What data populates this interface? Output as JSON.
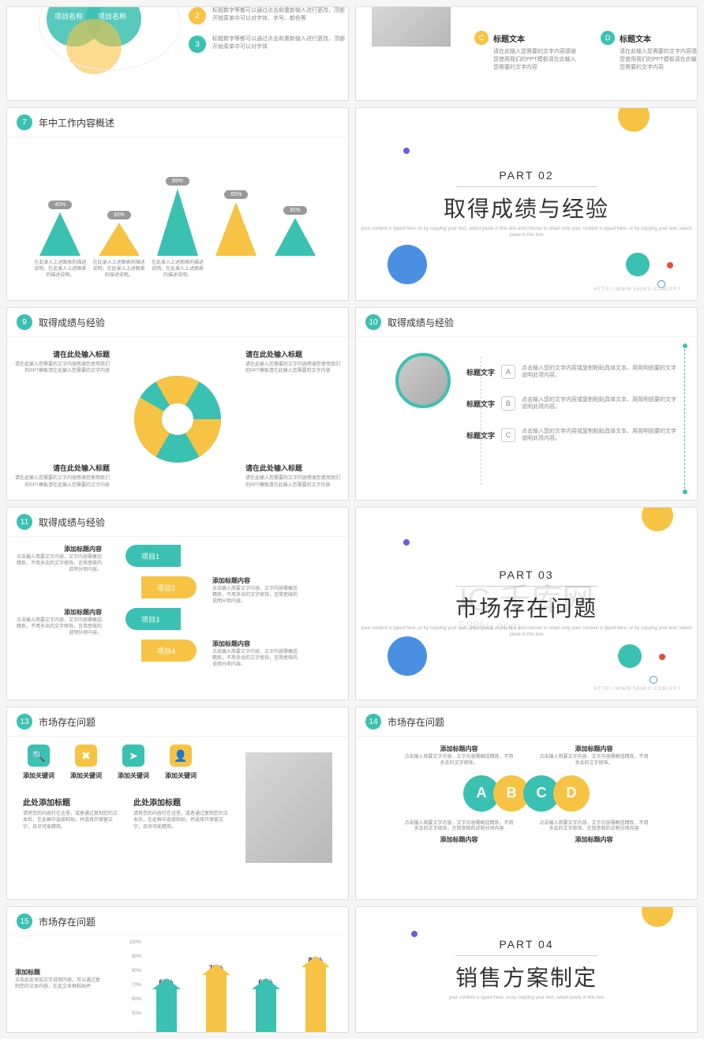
{
  "colors": {
    "teal": "#3ac1b2",
    "yellow": "#f7c344",
    "blue": "#4a90e2",
    "red": "#e74c3c",
    "purple": "#6b5bde"
  },
  "watermark": {
    "logo": "IC",
    "text": "千库网",
    "url": "588ku.com"
  },
  "slide1": {
    "venn": {
      "label1": "项目名称",
      "label2": "项目名称"
    },
    "items": [
      {
        "n": "2",
        "color": "#f7c344",
        "text": "标题数字等都可以通过点击和重新输入进行更改，顶部开始菜单中可以对字体、字号、颜色等"
      },
      {
        "n": "3",
        "color": "#3ac1b2",
        "text": "标题数字等都可以通过点击和重新输入进行更改，顶部开始菜单中可以对字体"
      }
    ]
  },
  "slide2": {
    "items": [
      {
        "letter": "C",
        "color": "#f7c344",
        "title": "标题文本",
        "text": "请在此输入您需要的文字内容感谢您使用我们的PPT模板请在此输入您需要的文字内容"
      },
      {
        "letter": "D",
        "color": "#3ac1b2",
        "title": "标题文本",
        "text": "请在此输入您需要的文字内容感谢您使用我们的PPT模板请在此输入您需要的文字内容"
      }
    ],
    "top": [
      {
        "text": "请在此输入您需要的文字内容"
      },
      {
        "text": "请在此输入您需要的文字内容"
      }
    ]
  },
  "slide7": {
    "num": "7",
    "title": "年中工作内容概述",
    "peaks": [
      {
        "pct": "40%",
        "h": 55,
        "color": "#3ac1b2",
        "desc": "在此录入上述图表的描述说明，在此录入上述图表的描述说明。"
      },
      {
        "pct": "30%",
        "h": 42,
        "color": "#f7c344",
        "desc": "在此录入上述图表的描述说明，在此录入上述图表的描述说明。"
      },
      {
        "pct": "89%",
        "h": 85,
        "color": "#3ac1b2",
        "desc": "在此录入上述图表的描述说明，在此录入上述图表的描述说明。"
      },
      {
        "pct": "65%",
        "h": 68,
        "color": "#f7c344",
        "desc": ""
      },
      {
        "pct": "35%",
        "h": 48,
        "color": "#3ac1b2",
        "desc": ""
      }
    ]
  },
  "part2": {
    "num": "PART 02",
    "title": "取得成绩与经验",
    "sub": "your content is typed here, or by copying your text, select paste in this box and choose to retain only your content is typed here, or by copying your text, select paste in this box",
    "url": "HTTP://WWW.588KU.COM/PPT"
  },
  "slide9": {
    "num": "9",
    "title": "取得成绩与经验",
    "quads": [
      {
        "pos": "tl",
        "title": "请在此处输入标题",
        "text": "请在此输入您需要的文字内容感谢您使用我们的PPT模板请在此输入您需要的文字内容"
      },
      {
        "pos": "tr",
        "title": "请在此处输入标题",
        "text": "请在此输入您需要的文字内容感谢您使用我们的PPT模板请在此输入您需要的文字内容"
      },
      {
        "pos": "bl",
        "title": "请在此处输入标题",
        "text": "请在此输入您需要的文字内容感谢您使用我们的PPT模板请在此输入您需要的文字内容"
      },
      {
        "pos": "br",
        "title": "请在此处输入标题",
        "text": "请在此输入您需要的文字内容感谢您使用我们的PPT模板请在此输入您需要的文字内容"
      }
    ],
    "segColors": [
      "#3ac1b2",
      "#f7c344",
      "#3ac1b2",
      "#f7c344",
      "#3ac1b2",
      "#f7c344"
    ]
  },
  "slide10": {
    "num": "10",
    "title": "取得成绩与经验",
    "rows": [
      {
        "label": "标题文字",
        "letter": "A",
        "text": "点击输入您的文字内容或复制粘贴具体文本、用简明扼要的文字说明此项内容。"
      },
      {
        "label": "标题文字",
        "letter": "B",
        "text": "点击输入您的文字内容或复制粘贴具体文本、用简明扼要的文字说明此项内容。"
      },
      {
        "label": "标题文字",
        "letter": "C",
        "text": "点击输入您的文字内容或复制粘贴具体文本、用简明扼要的文字说明此项内容。"
      }
    ]
  },
  "slide11": {
    "num": "11",
    "title": "取得成绩与经验",
    "projects": [
      {
        "label": "项目1",
        "color": "#3ac1b2"
      },
      {
        "label": "项目2",
        "color": "#f7c344"
      },
      {
        "label": "项目3",
        "color": "#3ac1b2"
      },
      {
        "label": "项目4",
        "color": "#f7c344"
      }
    ],
    "texts": [
      {
        "title": "添加标题内容",
        "text": "点击输入简要文字内容，文字内容需概括精炼，不用多余的文字修饰，言简意赅的说明分项内容。"
      },
      {
        "title": "添加标题内容",
        "text": "点击输入简要文字内容，文字内容需概括精炼，不用多余的文字修饰，言简意赅的说明分项内容。"
      },
      {
        "title": "添加标题内容",
        "text": "点击输入简要文字内容，文字内容需概括精炼，不用多余的文字修饰，言简意赅的说明分项内容。"
      },
      {
        "title": "添加标题内容",
        "text": "点击输入简要文字内容，文字内容需概括精炼，不用多余的文字修饰，言简意赅的说明分项内容。"
      }
    ]
  },
  "part3": {
    "num": "PART 03",
    "title": "市场存在问题",
    "sub": "your content is typed here, or by copying your text, select paste in this box and choose to retain only your content is typed here, or by copying your text, select paste in this box",
    "url": "HTTP://WWW.588KU.COM/PPT"
  },
  "slide13": {
    "num": "13",
    "title": "市场存在问题",
    "keywords": [
      {
        "icon": "🔍",
        "color": "#3ac1b2",
        "label": "添加关键词"
      },
      {
        "icon": "✖",
        "color": "#f7c344",
        "label": "添加关键词"
      },
      {
        "icon": "➤",
        "color": "#3ac1b2",
        "label": "添加关键词"
      },
      {
        "icon": "👤",
        "color": "#f7c344",
        "label": "添加关键词"
      }
    ],
    "paras": [
      {
        "title": "此处添加标题",
        "text": "请将您的内容打在这里，或者通过复制您的文本后，在此框中选择粘贴，并选择只保留文字，且尽可能精简。"
      },
      {
        "title": "此处添加标题",
        "text": "请将您的内容打在这里，或者通过复制您的文本后，在此框中选择粘贴，并选择只保留文字，且尽可能精简。"
      }
    ]
  },
  "slide14": {
    "num": "14",
    "title": "市场存在问题",
    "topTexts": [
      {
        "title": "添加标题内容",
        "text": "点击输入简要文字内容，文字内容需概括精炼，不用多余的文字修饰。"
      },
      {
        "title": "添加标题内容",
        "text": "点击输入简要文字内容，文字内容需概括精炼，不用多余的文字修饰。"
      }
    ],
    "letters": [
      {
        "l": "A",
        "color": "#3ac1b2"
      },
      {
        "l": "B",
        "color": "#f7c344"
      },
      {
        "l": "C",
        "color": "#3ac1b2"
      },
      {
        "l": "D",
        "color": "#f7c344"
      }
    ],
    "bottomTexts": [
      {
        "title": "添加标题内容",
        "text": "点击输入简要文字内容，文字内容需概括精炼，不用多余的文字修饰，言简意赅的说明分项内容"
      },
      {
        "title": "添加标题内容",
        "text": "点击输入简要文字内容，文字内容需概括精炼，不用多余的文字修饰，言简意赅的说明分项内容"
      }
    ]
  },
  "slide15": {
    "num": "15",
    "title": "市场存在问题",
    "left": {
      "title": "添加标题",
      "text": "点击此处添加文字说明内容，可以通过复制您的文本内容，在此文本框粘贴并"
    },
    "arrows": [
      {
        "pct": "63%",
        "h": 60,
        "color": "#3ac1b2"
      },
      {
        "pct": "79%",
        "h": 78,
        "color": "#f7c344"
      },
      {
        "pct": "63%",
        "h": 60,
        "color": "#3ac1b2"
      },
      {
        "pct": "88%",
        "h": 88,
        "color": "#f7c344"
      }
    ],
    "yticks": [
      "100%",
      "90%",
      "80%",
      "70%",
      "60%",
      "50%"
    ]
  },
  "part4": {
    "num": "PART 04",
    "title": "销售方案制定",
    "sub": "your content is typed here, or by copying your text, select paste in this box"
  }
}
